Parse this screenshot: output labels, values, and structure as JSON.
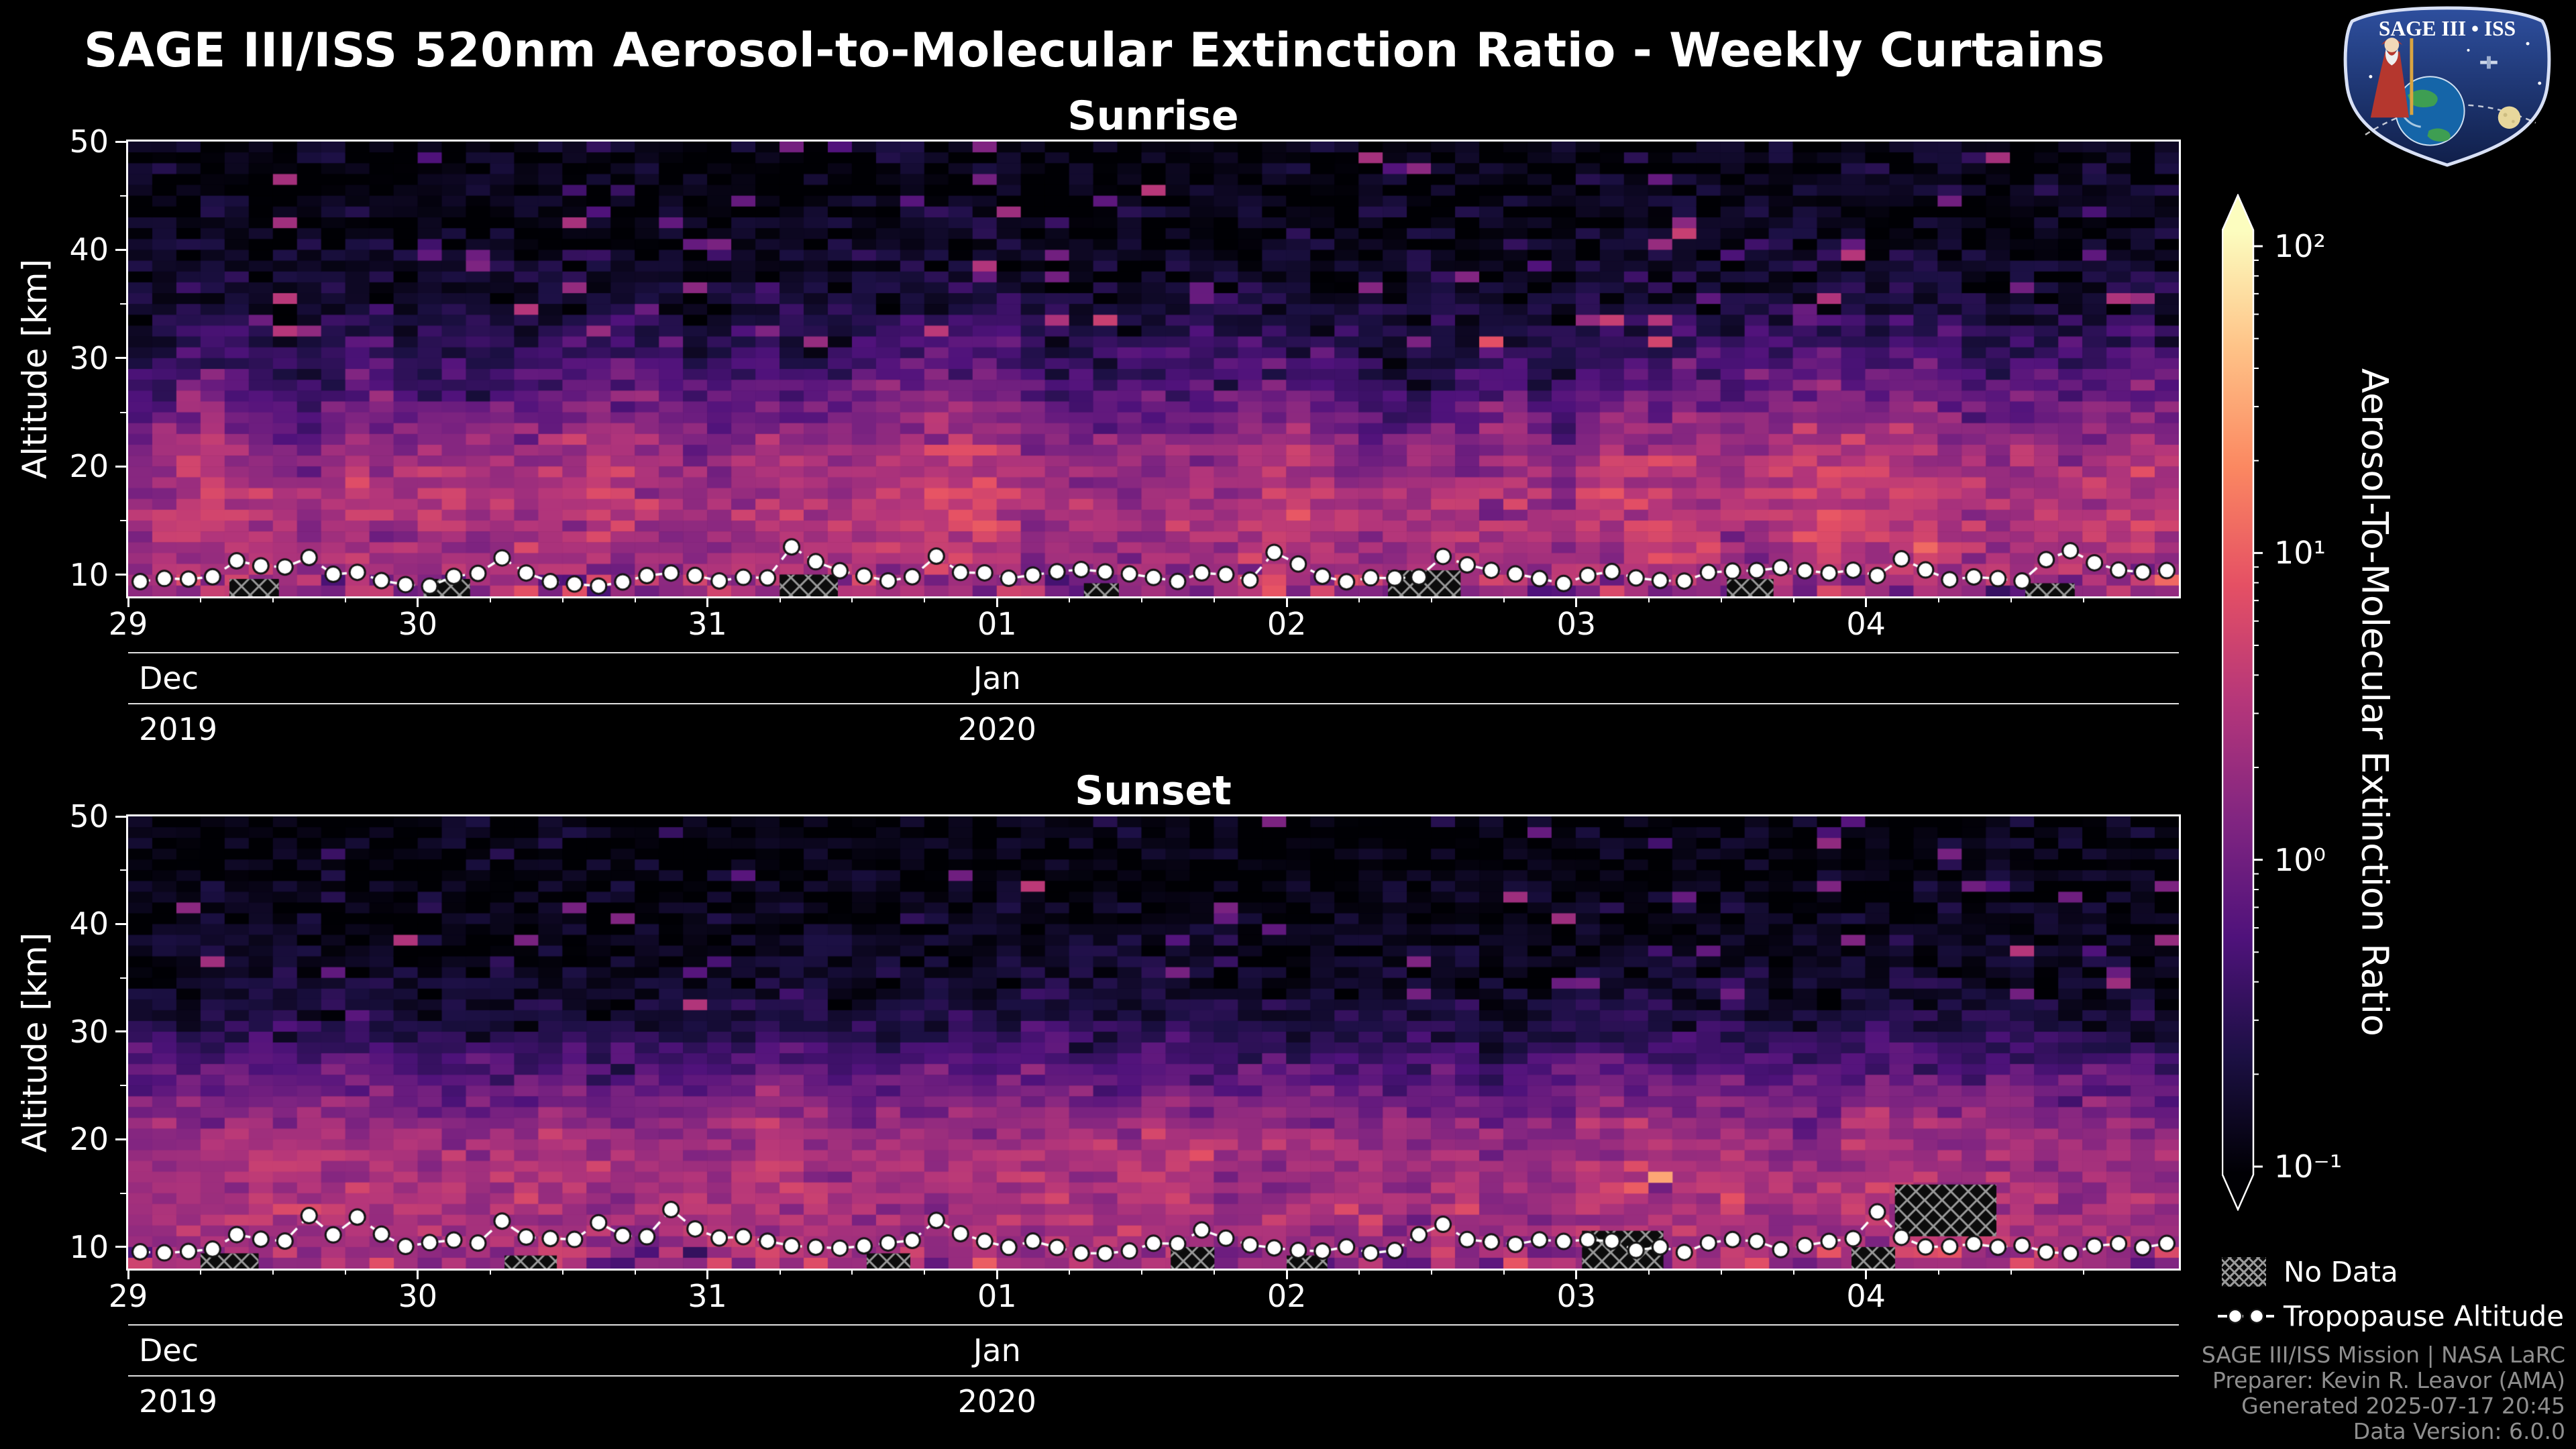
{
  "title": "SAGE III/ISS 520nm Aerosol-to-Molecular Extinction Ratio - Weekly Curtains",
  "logo": {
    "text": "SAGE III • ISS"
  },
  "axes": {
    "month_row": [
      {
        "label": "Dec",
        "day": 0
      },
      {
        "label": "Jan",
        "day": 3
      }
    ],
    "year_row": [
      {
        "label": "2019",
        "day": 0
      },
      {
        "label": "2020",
        "day": 3
      }
    ]
  },
  "colorbar": {
    "label": "Aerosol-To-Molecular Extinction Ratio",
    "ticks": [
      {
        "label": "10²",
        "value": 100
      },
      {
        "label": "10¹",
        "value": 10
      },
      {
        "label": "10⁰",
        "value": 1
      },
      {
        "label": "10⁻¹",
        "value": 0.1
      }
    ],
    "stops": [
      "#fcfdbf",
      "#fec287",
      "#fb8861",
      "#e55064",
      "#b5367a",
      "#812581",
      "#4f127b",
      "#1c1044",
      "#000004"
    ]
  },
  "legend": [
    {
      "icon": "no-data-hatch",
      "label": "No Data"
    },
    {
      "icon": "tropopause-line",
      "label": "Tropopause Altitude"
    }
  ],
  "credits": [
    "SAGE III/ISS Mission | NASA LaRC",
    "Preparer: Kevin R. Leavor (AMA)",
    "Generated 2025-07-17 20:45",
    "Data Version: 6.0.0"
  ],
  "chart_data": {
    "type": "heatmap",
    "x_range": [
      "2019-12-29",
      "2020-01-05"
    ],
    "x_span_days": 7.08,
    "bins_per_day": 12,
    "x_tick_labels": [
      "29",
      "30",
      "31",
      "01",
      "02",
      "03",
      "04"
    ],
    "y_label": "Altitude [km]",
    "y_lim": [
      8,
      50
    ],
    "y_ticks": [
      10,
      20,
      30,
      40,
      50
    ],
    "y_minor_ticks": [
      15,
      25,
      35,
      45
    ],
    "color_scale": {
      "type": "log",
      "min": 0.1,
      "max": 100,
      "colormap": "magma"
    },
    "panels": [
      {
        "title": "Sunrise",
        "seed": 7,
        "profile": [
          [
            8,
            1.7
          ],
          [
            10,
            2.1
          ],
          [
            13,
            2.8
          ],
          [
            16,
            3.0
          ],
          [
            19,
            2.7
          ],
          [
            22,
            1.8
          ],
          [
            25,
            1.0
          ],
          [
            28,
            0.55
          ],
          [
            31,
            0.32
          ],
          [
            34,
            0.22
          ],
          [
            38,
            0.16
          ],
          [
            42,
            0.13
          ],
          [
            46,
            0.12
          ],
          [
            50,
            0.12
          ]
        ],
        "col_amp": 0.26,
        "cell_sigma": 0.17,
        "top_shift_km": 2.4,
        "speckle_prob": 0.05,
        "tropopause": {
          "seed": 101,
          "base": 9.8,
          "spike_prob": 0.12
        },
        "no_data": [
          [
            0.35,
            0.52,
            8,
            9.6
          ],
          [
            1.02,
            1.18,
            8,
            9.6
          ],
          [
            2.25,
            2.45,
            8,
            10.0
          ],
          [
            3.3,
            3.42,
            8,
            9.2
          ],
          [
            4.35,
            4.6,
            8,
            10.4
          ],
          [
            5.52,
            5.68,
            8,
            9.6
          ],
          [
            6.55,
            6.72,
            8,
            9.2
          ]
        ],
        "hot_spots": [
          [
            1.55,
            8.6,
            7
          ],
          [
            1.62,
            9.4,
            6
          ],
          [
            3.05,
            8.6,
            5
          ],
          [
            5.1,
            8.6,
            6
          ]
        ]
      },
      {
        "title": "Sunset",
        "seed": 21,
        "profile": [
          [
            8,
            1.9
          ],
          [
            10,
            2.2
          ],
          [
            13,
            2.6
          ],
          [
            16,
            2.6
          ],
          [
            19,
            2.4
          ],
          [
            22,
            1.6
          ],
          [
            25,
            0.9
          ],
          [
            28,
            0.45
          ],
          [
            31,
            0.24
          ],
          [
            34,
            0.17
          ],
          [
            38,
            0.14
          ],
          [
            42,
            0.12
          ],
          [
            46,
            0.11
          ],
          [
            50,
            0.11
          ]
        ],
        "col_amp": 0.17,
        "cell_sigma": 0.15,
        "top_shift_km": 1.3,
        "speckle_prob": 0.04,
        "tropopause": {
          "seed": 202,
          "base": 10.0,
          "spike_prob": 0.15
        },
        "no_data": [
          [
            0.25,
            0.45,
            8,
            9.4
          ],
          [
            1.3,
            1.48,
            8,
            9.2
          ],
          [
            2.55,
            2.7,
            8,
            9.4
          ],
          [
            3.6,
            3.75,
            8,
            10.0
          ],
          [
            4.0,
            4.14,
            8,
            9.2
          ],
          [
            5.02,
            5.3,
            8,
            11.5
          ],
          [
            5.95,
            6.1,
            8,
            10.0
          ],
          [
            6.1,
            6.45,
            11.0,
            15.8
          ]
        ],
        "hot_spots": [
          [
            0.9,
            8.5,
            7
          ],
          [
            2.05,
            8.6,
            6
          ],
          [
            4.75,
            9.0,
            8
          ],
          [
            5.27,
            16.4,
            28
          ],
          [
            5.23,
            15.4,
            9
          ],
          [
            5.6,
            8.5,
            7
          ]
        ]
      }
    ]
  }
}
